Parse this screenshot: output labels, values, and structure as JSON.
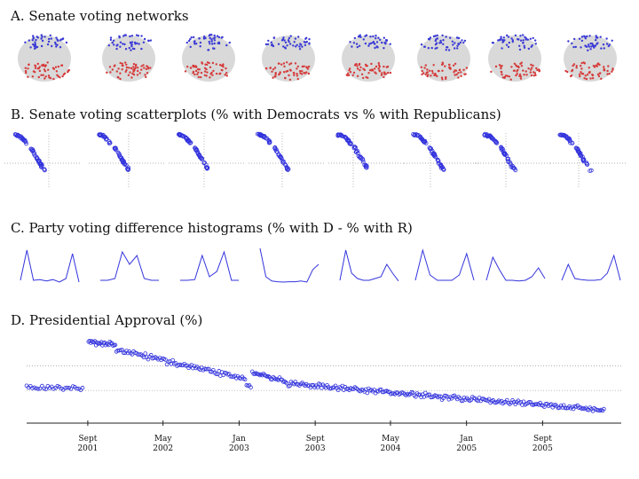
{
  "sections": {
    "a_title": "A. Senate voting networks",
    "b_title": "B. Senate voting scatterplots (% with Democrats vs % with Republicans)",
    "c_title": "C. Party voting difference histograms (% with D - % with R)",
    "d_title": "D. Presidential Approval (%)"
  },
  "colors": {
    "democrat": "#3a3ad6",
    "republican": "#d63a3a",
    "blob": "#cccccc",
    "line": "#3333dd",
    "grid": "#999999"
  },
  "chart_data": [
    {
      "id": "networks",
      "type": "other",
      "panels": 8,
      "description_values": {
        "blue_node_count_per_panel": 45,
        "red_node_count_per_panel": 55
      }
    },
    {
      "id": "scatterplots",
      "type": "scatter",
      "panels": 8,
      "xlabel": "",
      "ylabel": ""
    },
    {
      "id": "histograms",
      "type": "line",
      "panels": [
        [
          0.1,
          0.95,
          0.1,
          0.12,
          0.08,
          0.12,
          0.05,
          0.15,
          0.85,
          0.05
        ],
        [
          0.1,
          0.1,
          0.15,
          0.9,
          0.55,
          0.8,
          0.15,
          0.1,
          0.1
        ],
        [
          0.1,
          0.1,
          0.12,
          0.8,
          0.2,
          0.35,
          0.9,
          0.1,
          0.1
        ],
        [
          1.0,
          0.2,
          0.08,
          0.06,
          0.05,
          0.06,
          0.06,
          0.08,
          0.05,
          0.4,
          0.55
        ],
        [
          0.1,
          0.95,
          0.3,
          0.15,
          0.1,
          0.1,
          0.15,
          0.2,
          0.55,
          0.3,
          0.08
        ],
        [
          0.1,
          0.95,
          0.25,
          0.1,
          0.1,
          0.1,
          0.25,
          0.85,
          0.1
        ],
        [
          0.1,
          0.75,
          0.4,
          0.1,
          0.1,
          0.08,
          0.1,
          0.2,
          0.45,
          0.15
        ],
        [
          0.1,
          0.55,
          0.15,
          0.12,
          0.1,
          0.1,
          0.12,
          0.3,
          0.8,
          0.1
        ]
      ]
    },
    {
      "id": "approval",
      "type": "scatter",
      "ylabel": "",
      "x_ticks": [
        {
          "label": "Sept",
          "year": "2001",
          "frac": 0.1057
        },
        {
          "label": "May",
          "year": "2002",
          "frac": 0.2357
        },
        {
          "label": "Jan",
          "year": "2003",
          "frac": 0.3672
        },
        {
          "label": "Sept",
          "year": "2003",
          "frac": 0.4987
        },
        {
          "label": "May",
          "year": "2004",
          "frac": 0.6288
        },
        {
          "label": "Jan",
          "year": "2005",
          "frac": 0.7602
        },
        {
          "label": "Sept",
          "year": "2005",
          "frac": 0.8917
        }
      ],
      "gridlines_approval": [
        70,
        55
      ],
      "segments": [
        {
          "x0": 0.0,
          "x1": 0.1,
          "y0": 57,
          "y1": 56,
          "count": 30
        },
        {
          "x0": 0.107,
          "x1": 0.155,
          "y0": 85,
          "y1": 83,
          "count": 26
        },
        {
          "x0": 0.155,
          "x1": 0.38,
          "y0": 80,
          "y1": 62,
          "count": 90
        },
        {
          "x0": 0.38,
          "x1": 0.39,
          "y0": 58,
          "y1": 57,
          "count": 4
        },
        {
          "x0": 0.39,
          "x1": 0.45,
          "y0": 66,
          "y1": 60,
          "count": 28
        },
        {
          "x0": 0.45,
          "x1": 1.0,
          "y0": 59,
          "y1": 43,
          "count": 230
        }
      ],
      "ylim": [
        35,
        92
      ]
    }
  ]
}
